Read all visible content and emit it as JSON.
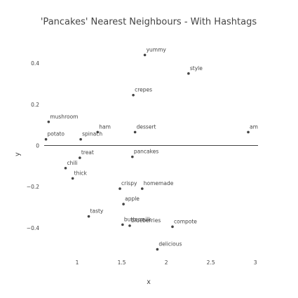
{
  "chart_data": {
    "type": "scatter",
    "title": "'Pancakes' Nearest Neighbours - With Hashtags",
    "xlabel": "x",
    "ylabel": "y",
    "xlim": [
      0.63,
      3.03
    ],
    "ylim": [
      -0.52,
      0.52
    ],
    "xticks": [
      1,
      1.5,
      2,
      2.5,
      3
    ],
    "yticks": [
      -0.4,
      -0.2,
      0,
      0.2,
      0.4
    ],
    "xtick_labels": [
      "1",
      "1.5",
      "2",
      "2.5",
      "3"
    ],
    "ytick_labels": [
      "−0.4",
      "−0.2",
      "0",
      "0.2",
      "0.4"
    ],
    "grid": false,
    "zero_line": true,
    "point_color": "#444444",
    "points": [
      {
        "label": "yummy",
        "x": 1.76,
        "y": 0.44
      },
      {
        "label": "style",
        "x": 2.25,
        "y": 0.35
      },
      {
        "label": "crepes",
        "x": 1.63,
        "y": 0.245
      },
      {
        "label": "mushroom",
        "x": 0.68,
        "y": 0.115
      },
      {
        "label": "potato",
        "x": 0.65,
        "y": 0.03
      },
      {
        "label": "spinach",
        "x": 1.04,
        "y": 0.03
      },
      {
        "label": "ham",
        "x": 1.23,
        "y": 0.065
      },
      {
        "label": "dessert",
        "x": 1.65,
        "y": 0.065
      },
      {
        "label": "amazing",
        "x": 2.92,
        "y": 0.065
      },
      {
        "label": "treat",
        "x": 1.03,
        "y": -0.06
      },
      {
        "label": "pancakes",
        "x": 1.62,
        "y": -0.055
      },
      {
        "label": "chili",
        "x": 0.87,
        "y": -0.11
      },
      {
        "label": "thick",
        "x": 0.95,
        "y": -0.16
      },
      {
        "label": "crispy",
        "x": 1.48,
        "y": -0.21
      },
      {
        "label": "homemade",
        "x": 1.73,
        "y": -0.21
      },
      {
        "label": "apple",
        "x": 1.52,
        "y": -0.285
      },
      {
        "label": "tasty",
        "x": 1.13,
        "y": -0.345
      },
      {
        "label": "buttermilk",
        "x": 1.51,
        "y": -0.385
      },
      {
        "label": "blueberries",
        "x": 1.59,
        "y": -0.39
      },
      {
        "label": "compote",
        "x": 2.07,
        "y": -0.395
      },
      {
        "label": "delicious",
        "x": 1.9,
        "y": -0.505
      }
    ]
  }
}
